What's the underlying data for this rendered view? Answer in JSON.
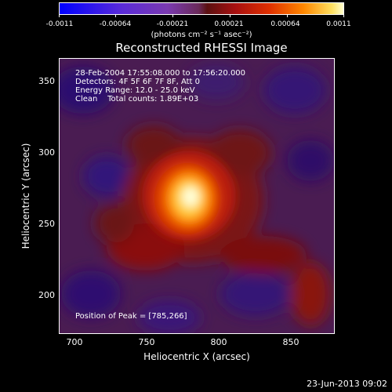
{
  "colorbar": {
    "ticks": [
      "-0.0011",
      "-0.00064",
      "-0.00021",
      "0.00021",
      "0.00064",
      "0.0011"
    ],
    "units": "(photons cm⁻² s⁻¹ asec⁻²)"
  },
  "title": "Reconstructed RHESSI Image",
  "annotations": {
    "time": "28-Feb-2004 17:55:08.000 to 17:56:20.000",
    "detectors": "Detectors: 4F 5F 6F 7F 8F, Att 0",
    "energy": "Energy Range: 12.0 - 25.0 keV",
    "clean": "Clean    Total counts: 1.89E+03",
    "peak": "Position of Peak = [785,266]"
  },
  "axes": {
    "xlabel": "Heliocentric X (arcsec)",
    "ylabel": "Heliocentric Y (arcsec)",
    "xticks": [
      "700",
      "750",
      "800",
      "850"
    ],
    "yticks": [
      "350",
      "300",
      "250",
      "200"
    ]
  },
  "timestamp": "23-Jun-2013 09:02"
}
